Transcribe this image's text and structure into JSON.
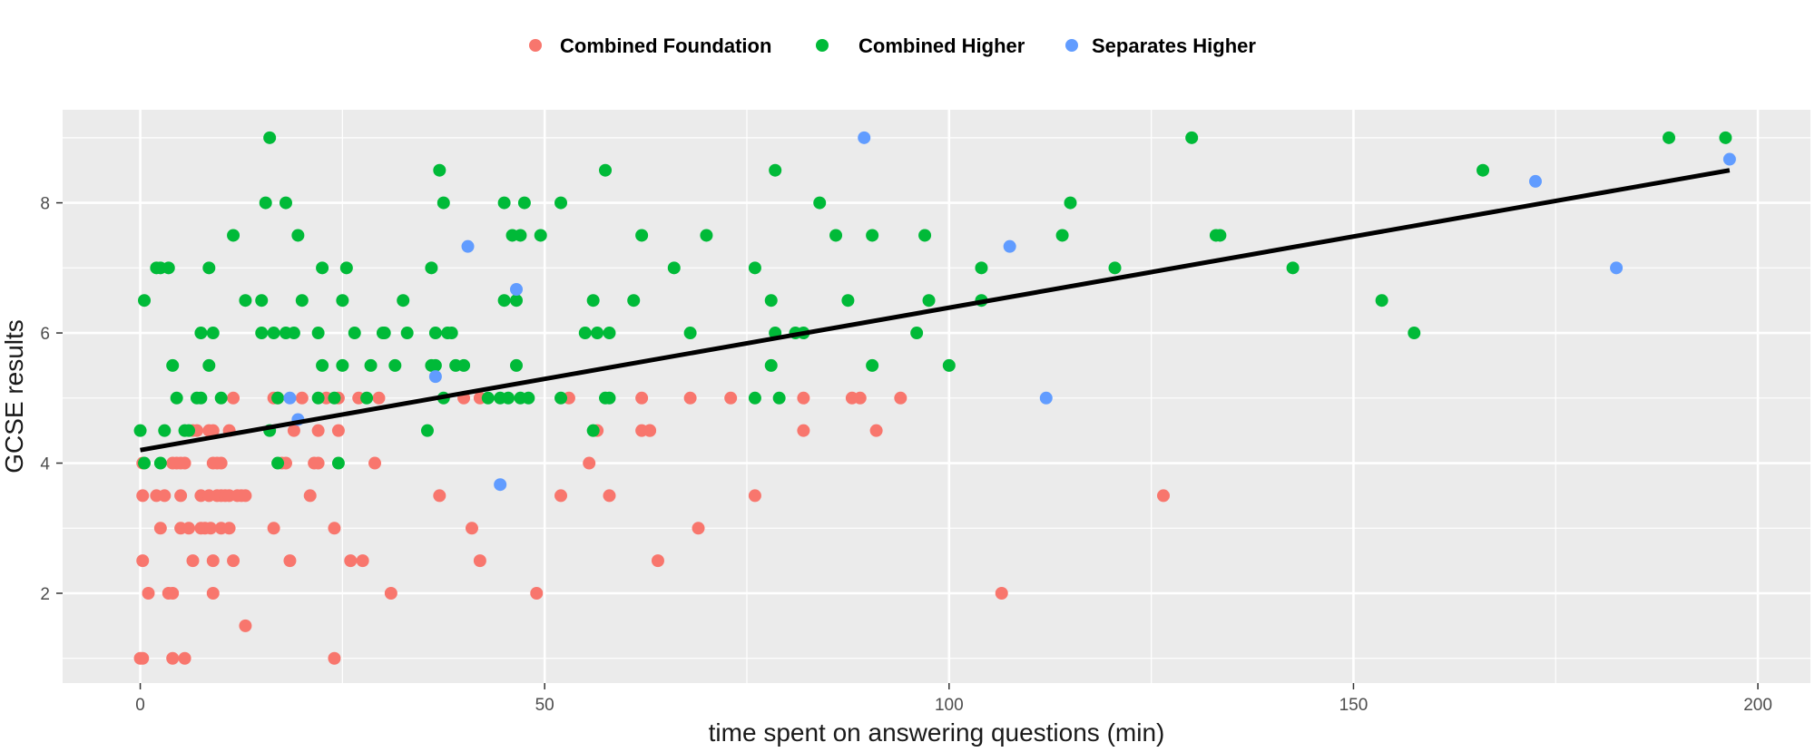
{
  "chart_data": {
    "type": "scatter",
    "xlabel": "time spent on answering questions (min)",
    "ylabel": "GCSE results",
    "xlim": [
      -9.6,
      206.5
    ],
    "ylim": [
      0.62,
      9.43
    ],
    "x_ticks": [
      0,
      50,
      100,
      150,
      200
    ],
    "y_ticks": [
      2,
      4,
      6,
      8
    ],
    "grid": true,
    "legend_position": "top",
    "series": [
      {
        "name": "Combined Foundation",
        "color": "#f8766d",
        "points": [
          [
            0,
            1
          ],
          [
            0.3,
            1
          ],
          [
            0.3,
            2.5
          ],
          [
            0.3,
            3.5
          ],
          [
            0.3,
            4
          ],
          [
            1,
            2
          ],
          [
            2,
            3.5
          ],
          [
            2.5,
            3
          ],
          [
            3,
            3.5
          ],
          [
            3.5,
            2
          ],
          [
            4,
            2
          ],
          [
            4,
            4
          ],
          [
            4,
            1
          ],
          [
            4.5,
            4
          ],
          [
            5,
            3.5
          ],
          [
            5,
            4
          ],
          [
            5,
            3
          ],
          [
            5.5,
            4
          ],
          [
            5.5,
            1
          ],
          [
            6,
            3
          ],
          [
            6.5,
            2.5
          ],
          [
            6.5,
            4.5
          ],
          [
            7,
            4.5
          ],
          [
            7.5,
            3.5
          ],
          [
            7.5,
            3
          ],
          [
            8,
            3
          ],
          [
            8.5,
            4.5
          ],
          [
            8.5,
            3.5
          ],
          [
            8.7,
            3
          ],
          [
            9,
            4.5
          ],
          [
            9,
            4
          ],
          [
            9,
            2.5
          ],
          [
            9,
            2
          ],
          [
            9.5,
            3.5
          ],
          [
            9.5,
            4
          ],
          [
            10,
            3
          ],
          [
            10,
            4
          ],
          [
            10,
            3.5
          ],
          [
            10.5,
            3.5
          ],
          [
            11,
            4.5
          ],
          [
            11,
            3
          ],
          [
            11,
            3.5
          ],
          [
            11.5,
            5
          ],
          [
            11.5,
            2.5
          ],
          [
            12,
            3.5
          ],
          [
            12.5,
            3.5
          ],
          [
            13,
            3.5
          ],
          [
            13,
            1.5
          ],
          [
            16.5,
            5
          ],
          [
            16.5,
            3
          ],
          [
            17,
            5
          ],
          [
            17.5,
            4
          ],
          [
            18,
            4
          ],
          [
            18.5,
            2.5
          ],
          [
            19,
            4.5
          ],
          [
            20,
            5
          ],
          [
            21,
            3.5
          ],
          [
            21.5,
            4
          ],
          [
            22,
            4
          ],
          [
            22,
            4.5
          ],
          [
            23,
            5
          ],
          [
            24,
            1
          ],
          [
            24,
            3
          ],
          [
            24.5,
            4.5
          ],
          [
            24.5,
            5
          ],
          [
            26,
            2.5
          ],
          [
            27,
            5
          ],
          [
            27.5,
            2.5
          ],
          [
            29,
            4
          ],
          [
            29.5,
            5
          ],
          [
            31,
            2
          ],
          [
            37,
            3.5
          ],
          [
            40,
            5
          ],
          [
            41,
            3
          ],
          [
            42,
            2.5
          ],
          [
            42,
            5
          ],
          [
            49,
            2
          ],
          [
            52,
            3.5
          ],
          [
            53,
            5
          ],
          [
            55.5,
            4
          ],
          [
            56.5,
            4.5
          ],
          [
            58,
            3.5
          ],
          [
            62,
            4.5
          ],
          [
            62,
            5
          ],
          [
            63,
            4.5
          ],
          [
            63,
            4.5
          ],
          [
            64,
            2.5
          ],
          [
            68,
            5
          ],
          [
            69,
            3
          ],
          [
            73,
            5
          ],
          [
            76,
            3.5
          ],
          [
            82,
            5
          ],
          [
            82,
            4.5
          ],
          [
            88,
            5
          ],
          [
            89,
            5
          ],
          [
            91,
            4.5
          ],
          [
            94,
            5
          ],
          [
            106.5,
            2
          ],
          [
            126.5,
            3.5
          ]
        ]
      },
      {
        "name": "Combined Higher",
        "color": "#00ba38",
        "points": [
          [
            0,
            4.5
          ],
          [
            0.5,
            4
          ],
          [
            0.5,
            6.5
          ],
          [
            2,
            7
          ],
          [
            2.5,
            4
          ],
          [
            2.5,
            7
          ],
          [
            3,
            4.5
          ],
          [
            3.5,
            7
          ],
          [
            4,
            5.5
          ],
          [
            4.5,
            5
          ],
          [
            5.5,
            4.5
          ],
          [
            6,
            4.5
          ],
          [
            7,
            5
          ],
          [
            7.5,
            6
          ],
          [
            7.5,
            5
          ],
          [
            8.5,
            5.5
          ],
          [
            8.5,
            7
          ],
          [
            9,
            6
          ],
          [
            10,
            5
          ],
          [
            11.5,
            7.5
          ],
          [
            13,
            6.5
          ],
          [
            15,
            6.5
          ],
          [
            15,
            6
          ],
          [
            15.5,
            8
          ],
          [
            16,
            4.5
          ],
          [
            16,
            9
          ],
          [
            16.5,
            6
          ],
          [
            17,
            4
          ],
          [
            17,
            5
          ],
          [
            18,
            8
          ],
          [
            18,
            6
          ],
          [
            19,
            6
          ],
          [
            19.5,
            7.5
          ],
          [
            20,
            6.5
          ],
          [
            22,
            6
          ],
          [
            22,
            5
          ],
          [
            22.5,
            5.5
          ],
          [
            22.5,
            7
          ],
          [
            24,
            5
          ],
          [
            24.5,
            4
          ],
          [
            25,
            5.5
          ],
          [
            25,
            6.5
          ],
          [
            25.5,
            7
          ],
          [
            26.5,
            6
          ],
          [
            28,
            5
          ],
          [
            28.5,
            5.5
          ],
          [
            30,
            6
          ],
          [
            30.2,
            6
          ],
          [
            31.5,
            5.5
          ],
          [
            32.5,
            6.5
          ],
          [
            33,
            6
          ],
          [
            35.5,
            4.5
          ],
          [
            36,
            7
          ],
          [
            36,
            5.5
          ],
          [
            36.5,
            6
          ],
          [
            36.5,
            5.5
          ],
          [
            37,
            8.5
          ],
          [
            37.5,
            5
          ],
          [
            37.5,
            8
          ],
          [
            38,
            6
          ],
          [
            38.5,
            6
          ],
          [
            39,
            5.5
          ],
          [
            40,
            5.5
          ],
          [
            43,
            5
          ],
          [
            44.5,
            5
          ],
          [
            45,
            8
          ],
          [
            45,
            6.5
          ],
          [
            45.5,
            5
          ],
          [
            46,
            7.5
          ],
          [
            46.5,
            6.5
          ],
          [
            46.5,
            5.5
          ],
          [
            47,
            5
          ],
          [
            47,
            7.5
          ],
          [
            47.5,
            8
          ],
          [
            48,
            5
          ],
          [
            49.5,
            7.5
          ],
          [
            52,
            8
          ],
          [
            52,
            5
          ],
          [
            55,
            6
          ],
          [
            56,
            6.5
          ],
          [
            56,
            4.5
          ],
          [
            56.5,
            6
          ],
          [
            57.5,
            5
          ],
          [
            57.5,
            8.5
          ],
          [
            58,
            6
          ],
          [
            58,
            5
          ],
          [
            61,
            6.5
          ],
          [
            62,
            7.5
          ],
          [
            66,
            7
          ],
          [
            68,
            6
          ],
          [
            70,
            7.5
          ],
          [
            76,
            5
          ],
          [
            76,
            7
          ],
          [
            78,
            6.5
          ],
          [
            78,
            5.5
          ],
          [
            78.5,
            6
          ],
          [
            78.5,
            8.5
          ],
          [
            79,
            5
          ],
          [
            81,
            6
          ],
          [
            82,
            6
          ],
          [
            84,
            8
          ],
          [
            86,
            7.5
          ],
          [
            87.5,
            6.5
          ],
          [
            90.5,
            7.5
          ],
          [
            90.5,
            5.5
          ],
          [
            96,
            6
          ],
          [
            97,
            7.5
          ],
          [
            97.5,
            6.5
          ],
          [
            100,
            5.5
          ],
          [
            104,
            7
          ],
          [
            104,
            6.5
          ],
          [
            114,
            7.5
          ],
          [
            115,
            8
          ],
          [
            120.5,
            7
          ],
          [
            130,
            9
          ],
          [
            133,
            7.5
          ],
          [
            133.5,
            7.5
          ],
          [
            142.5,
            7
          ],
          [
            153.5,
            6.5
          ],
          [
            157.5,
            6
          ],
          [
            166,
            8.5
          ],
          [
            189,
            9
          ],
          [
            196,
            9
          ]
        ]
      },
      {
        "name": "Separates Higher",
        "color": "#619cff",
        "points": [
          [
            18.5,
            5
          ],
          [
            19.5,
            4.67
          ],
          [
            36.5,
            5.33
          ],
          [
            40.5,
            7.33
          ],
          [
            44.5,
            3.67
          ],
          [
            46.5,
            6.67
          ],
          [
            89.5,
            9
          ],
          [
            107.5,
            7.33
          ],
          [
            112,
            5
          ],
          [
            172.5,
            8.33
          ],
          [
            182.5,
            7
          ],
          [
            196.5,
            8.67
          ]
        ]
      }
    ],
    "trend_line": {
      "x": [
        0,
        196.5
      ],
      "y": [
        4.2,
        8.5
      ],
      "color": "#000000"
    }
  }
}
